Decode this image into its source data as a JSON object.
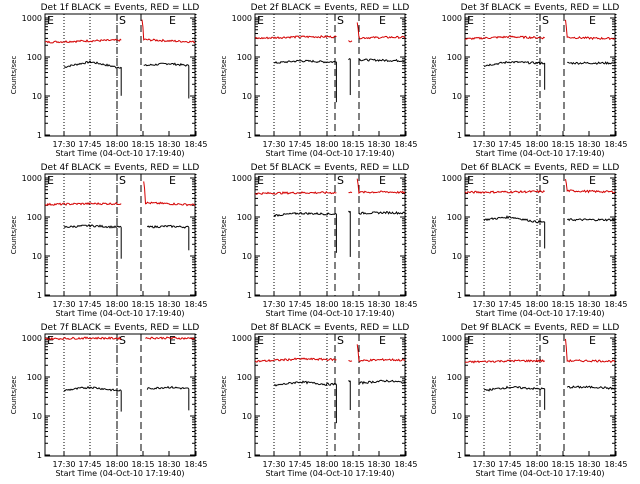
{
  "chart_data": [
    {
      "type": "line",
      "title": "Det 1f BLACK = Events, RED = LLD",
      "xlabel": "Start Time (04-Oct-10 17:19:40)",
      "ylabel": "Counts/sec",
      "x_ticks": [
        "17:30",
        "17:45",
        "18:00",
        "18:15",
        "18:30",
        "18:45"
      ],
      "y_ticks": [
        "1",
        "10",
        "100",
        "1000"
      ],
      "y_scale": "log",
      "ylim": [
        1,
        1100
      ],
      "xlim": [
        "17:19:40",
        "19:00"
      ],
      "markers": [
        "E",
        "S",
        "E"
      ],
      "series": [
        {
          "name": "Events",
          "color": "#000000",
          "segments": [
            {
              "x": [
                "17:30",
                "17:45",
                "18:00",
                "18:03"
              ],
              "y": [
                55,
                75,
                55,
                55
              ]
            },
            {
              "x": [
                "18:16",
                "18:30",
                "18:42"
              ],
              "y": [
                60,
                68,
                60
              ]
            },
            {
              "x": [
                "18:47",
                "18:48"
              ],
              "y": [
                55,
                55
              ]
            }
          ]
        },
        {
          "name": "LLD",
          "color": "#d40000",
          "segments": [
            {
              "x": [
                "17:19",
                "17:45",
                "18:03"
              ],
              "y": [
                240,
                260,
                270
              ]
            },
            {
              "x": [
                "18:15",
                "18:16",
                "18:30",
                "19:00"
              ],
              "y": [
                900,
                280,
                260,
                230
              ]
            }
          ]
        }
      ]
    },
    {
      "type": "line",
      "title": "Det 2f BLACK = Events, RED = LLD",
      "xlabel": "Start Time (04-Oct-10 17:19:40)",
      "ylabel": "Counts/sec",
      "x_ticks": [
        "17:30",
        "17:45",
        "18:00",
        "18:15",
        "18:30",
        "18:45"
      ],
      "y_ticks": [
        "1",
        "10",
        "100",
        "1000"
      ],
      "y_scale": "log",
      "ylim": [
        1,
        1100
      ],
      "xlim": [
        "17:19:40",
        "19:00"
      ],
      "markers": [
        "E",
        "S",
        "E"
      ],
      "series": [
        {
          "name": "Events",
          "color": "#000000",
          "segments": [
            {
              "x": [
                "17:30",
                "17:45",
                "18:00",
                "18:06"
              ],
              "y": [
                70,
                80,
                75,
                75
              ]
            },
            {
              "x": [
                "18:13",
                "18:14"
              ],
              "y": [
                90,
                90
              ]
            },
            {
              "x": [
                "18:19",
                "18:35",
                "18:48"
              ],
              "y": [
                85,
                82,
                80
              ]
            }
          ]
        },
        {
          "name": "LLD",
          "color": "#d40000",
          "segments": [
            {
              "x": [
                "17:19",
                "17:45",
                "18:06"
              ],
              "y": [
                300,
                330,
                330
              ]
            },
            {
              "x": [
                "18:13",
                "18:15"
              ],
              "y": [
                260,
                260
              ]
            },
            {
              "x": [
                "18:18",
                "18:19",
                "18:35",
                "19:00"
              ],
              "y": [
                800,
                310,
                320,
                320
              ]
            }
          ]
        }
      ]
    },
    {
      "type": "line",
      "title": "Det 3f BLACK = Events, RED = LLD",
      "xlabel": "Start Time (04-Oct-10 17:19:40)",
      "ylabel": "Counts/sec",
      "x_ticks": [
        "17:30",
        "17:45",
        "18:00",
        "18:15",
        "18:30",
        "18:45"
      ],
      "y_ticks": [
        "1",
        "10",
        "100",
        "1000"
      ],
      "y_scale": "log",
      "ylim": [
        1,
        1100
      ],
      "xlim": [
        "17:19:40",
        "19:00"
      ],
      "markers": [
        "E",
        "S",
        "E"
      ],
      "series": [
        {
          "name": "Events",
          "color": "#000000",
          "segments": [
            {
              "x": [
                "17:30",
                "17:45",
                "18:00",
                "18:05"
              ],
              "y": [
                60,
                75,
                70,
                70
              ]
            },
            {
              "x": [
                "18:18",
                "18:35",
                "18:46"
              ],
              "y": [
                70,
                70,
                70
              ]
            }
          ]
        },
        {
          "name": "LLD",
          "color": "#d40000",
          "segments": [
            {
              "x": [
                "17:19",
                "17:45",
                "18:05"
              ],
              "y": [
                290,
                330,
                310
              ]
            },
            {
              "x": [
                "18:17",
                "18:18",
                "18:35",
                "19:00"
              ],
              "y": [
                900,
                320,
                300,
                300
              ]
            }
          ]
        }
      ]
    },
    {
      "type": "line",
      "title": "Det 4f BLACK = Events, RED = LLD",
      "xlabel": "Start Time (04-Oct-10 17:19:40)",
      "ylabel": "Counts/sec",
      "x_ticks": [
        "17:30",
        "17:45",
        "18:00",
        "18:15",
        "18:30",
        "18:45"
      ],
      "y_ticks": [
        "1",
        "10",
        "100",
        "1000"
      ],
      "y_scale": "log",
      "ylim": [
        1,
        1100
      ],
      "xlim": [
        "17:19:40",
        "19:00"
      ],
      "markers": [
        "E",
        "S",
        "E"
      ],
      "series": [
        {
          "name": "Events",
          "color": "#000000",
          "segments": [
            {
              "x": [
                "17:30",
                "17:45",
                "18:00",
                "18:03"
              ],
              "y": [
                55,
                60,
                55,
                55
              ]
            },
            {
              "x": [
                "18:18",
                "18:30",
                "18:42"
              ],
              "y": [
                55,
                58,
                55
              ]
            },
            {
              "x": [
                "18:47",
                "18:48"
              ],
              "y": [
                55,
                55
              ]
            }
          ]
        },
        {
          "name": "LLD",
          "color": "#d40000",
          "segments": [
            {
              "x": [
                "17:19",
                "17:45",
                "18:03"
              ],
              "y": [
                210,
                220,
                220
              ]
            },
            {
              "x": [
                "18:16",
                "18:17",
                "18:30",
                "19:00"
              ],
              "y": [
                850,
                230,
                220,
                190
              ]
            }
          ]
        }
      ]
    },
    {
      "type": "line",
      "title": "Det 5f BLACK = Events, RED = LLD",
      "xlabel": "Start Time (04-Oct-10 17:19:40)",
      "ylabel": "Counts/sec",
      "x_ticks": [
        "17:30",
        "17:45",
        "18:00",
        "18:15",
        "18:30",
        "18:45"
      ],
      "y_ticks": [
        "1",
        "10",
        "100",
        "1000"
      ],
      "y_scale": "log",
      "ylim": [
        1,
        1100
      ],
      "xlim": [
        "17:19:40",
        "19:00"
      ],
      "markers": [
        "E",
        "S",
        "E"
      ],
      "series": [
        {
          "name": "Events",
          "color": "#000000",
          "segments": [
            {
              "x": [
                "17:30",
                "17:45",
                "18:00",
                "18:06"
              ],
              "y": [
                110,
                125,
                120,
                120
              ]
            },
            {
              "x": [
                "18:13",
                "18:14"
              ],
              "y": [
                140,
                140
              ]
            },
            {
              "x": [
                "18:19",
                "18:35",
                "18:48"
              ],
              "y": [
                125,
                130,
                125
              ]
            }
          ]
        },
        {
          "name": "LLD",
          "color": "#d40000",
          "segments": [
            {
              "x": [
                "17:19",
                "17:45",
                "18:06"
              ],
              "y": [
                400,
                420,
                420
              ]
            },
            {
              "x": [
                "18:13",
                "18:15"
              ],
              "y": [
                420,
                420
              ]
            },
            {
              "x": [
                "18:18",
                "18:19",
                "18:35",
                "19:00"
              ],
              "y": [
                1000,
                430,
                440,
                400
              ]
            }
          ]
        }
      ]
    },
    {
      "type": "line",
      "title": "Det 6f BLACK = Events, RED = LLD",
      "xlabel": "Start Time (04-Oct-10 17:19:40)",
      "ylabel": "Counts/sec",
      "x_ticks": [
        "17:30",
        "17:45",
        "18:00",
        "18:15",
        "18:30",
        "18:45"
      ],
      "y_ticks": [
        "1",
        "10",
        "100",
        "1000"
      ],
      "y_scale": "log",
      "ylim": [
        1,
        1100
      ],
      "xlim": [
        "17:19:40",
        "19:00"
      ],
      "markers": [
        "E",
        "S",
        "E"
      ],
      "series": [
        {
          "name": "Events",
          "color": "#000000",
          "segments": [
            {
              "x": [
                "17:30",
                "17:45",
                "18:00",
                "18:05"
              ],
              "y": [
                85,
                100,
                75,
                75
              ]
            },
            {
              "x": [
                "18:18",
                "18:35",
                "18:46"
              ],
              "y": [
                85,
                85,
                85
              ]
            }
          ]
        },
        {
          "name": "LLD",
          "color": "#d40000",
          "segments": [
            {
              "x": [
                "17:19",
                "17:45",
                "18:05"
              ],
              "y": [
                430,
                440,
                450
              ]
            },
            {
              "x": [
                "18:17",
                "18:18",
                "18:35",
                "19:00"
              ],
              "y": [
                950,
                470,
                450,
                430
              ]
            }
          ]
        }
      ]
    },
    {
      "type": "line",
      "title": "Det 7f BLACK = Events, RED = LLD",
      "xlabel": "Start Time (04-Oct-10 17:19:40)",
      "ylabel": "Counts/sec",
      "x_ticks": [
        "17:30",
        "17:45",
        "18:00",
        "18:15",
        "18:30",
        "18:45"
      ],
      "y_ticks": [
        "1",
        "10",
        "100",
        "1000"
      ],
      "y_scale": "log",
      "ylim": [
        1,
        1100
      ],
      "xlim": [
        "17:19:40",
        "19:00"
      ],
      "markers": [
        "E",
        "S",
        "E"
      ],
      "series": [
        {
          "name": "Events",
          "color": "#000000",
          "segments": [
            {
              "x": [
                "17:30",
                "17:45",
                "18:00",
                "18:03"
              ],
              "y": [
                45,
                55,
                45,
                45
              ]
            },
            {
              "x": [
                "18:18",
                "18:30",
                "18:42"
              ],
              "y": [
                50,
                55,
                50
              ]
            },
            {
              "x": [
                "18:47",
                "18:48"
              ],
              "y": [
                50,
                50
              ]
            }
          ]
        },
        {
          "name": "LLD",
          "color": "#d40000",
          "segments": [
            {
              "x": [
                "17:19",
                "17:45",
                "18:03"
              ],
              "y": [
                950,
                1000,
                980
              ]
            },
            {
              "x": [
                "18:17",
                "18:30",
                "19:00"
              ],
              "y": [
                1000,
                1000,
                950
              ]
            }
          ]
        }
      ]
    },
    {
      "type": "line",
      "title": "Det 8f BLACK = Events, RED = LLD",
      "xlabel": "Start Time (04-Oct-10 17:19:40)",
      "ylabel": "Counts/sec",
      "x_ticks": [
        "17:30",
        "17:45",
        "18:00",
        "18:15",
        "18:30",
        "18:45"
      ],
      "y_ticks": [
        "1",
        "10",
        "100",
        "1000"
      ],
      "y_scale": "log",
      "ylim": [
        1,
        1100
      ],
      "xlim": [
        "17:19:40",
        "19:00"
      ],
      "markers": [
        "E",
        "S",
        "E"
      ],
      "series": [
        {
          "name": "Events",
          "color": "#000000",
          "segments": [
            {
              "x": [
                "17:30",
                "17:45",
                "18:00",
                "18:06"
              ],
              "y": [
                60,
                75,
                65,
                65
              ]
            },
            {
              "x": [
                "18:13",
                "18:14"
              ],
              "y": [
                80,
                80
              ]
            },
            {
              "x": [
                "18:19",
                "18:35",
                "18:48"
              ],
              "y": [
                70,
                80,
                70
              ]
            }
          ]
        },
        {
          "name": "LLD",
          "color": "#d40000",
          "segments": [
            {
              "x": [
                "17:19",
                "17:45",
                "18:06"
              ],
              "y": [
                250,
                290,
                280
              ]
            },
            {
              "x": [
                "18:13",
                "18:15"
              ],
              "y": [
                260,
                260
              ]
            },
            {
              "x": [
                "18:18",
                "18:19",
                "18:35",
                "19:00"
              ],
              "y": [
                700,
                260,
                280,
                250
              ]
            }
          ]
        }
      ]
    },
    {
      "type": "line",
      "title": "Det 9f BLACK = Events, RED = LLD",
      "xlabel": "Start Time (04-Oct-10 17:19:40)",
      "ylabel": "Counts/sec",
      "x_ticks": [
        "17:30",
        "17:45",
        "18:00",
        "18:15",
        "18:30",
        "18:45"
      ],
      "y_ticks": [
        "1",
        "10",
        "100",
        "1000"
      ],
      "y_scale": "log",
      "ylim": [
        1,
        1100
      ],
      "xlim": [
        "17:19:40",
        "19:00"
      ],
      "markers": [
        "E",
        "S",
        "E"
      ],
      "series": [
        {
          "name": "Events",
          "color": "#000000",
          "segments": [
            {
              "x": [
                "17:30",
                "17:45",
                "18:00",
                "18:05"
              ],
              "y": [
                45,
                55,
                50,
                50
              ]
            },
            {
              "x": [
                "18:18",
                "18:35",
                "18:46"
              ],
              "y": [
                55,
                55,
                50
              ]
            }
          ]
        },
        {
          "name": "LLD",
          "color": "#d40000",
          "segments": [
            {
              "x": [
                "17:19",
                "17:45",
                "18:05"
              ],
              "y": [
                240,
                260,
                260
              ]
            },
            {
              "x": [
                "18:17",
                "18:18",
                "18:35",
                "19:00"
              ],
              "y": [
                900,
                260,
                260,
                240
              ]
            }
          ]
        }
      ]
    }
  ]
}
